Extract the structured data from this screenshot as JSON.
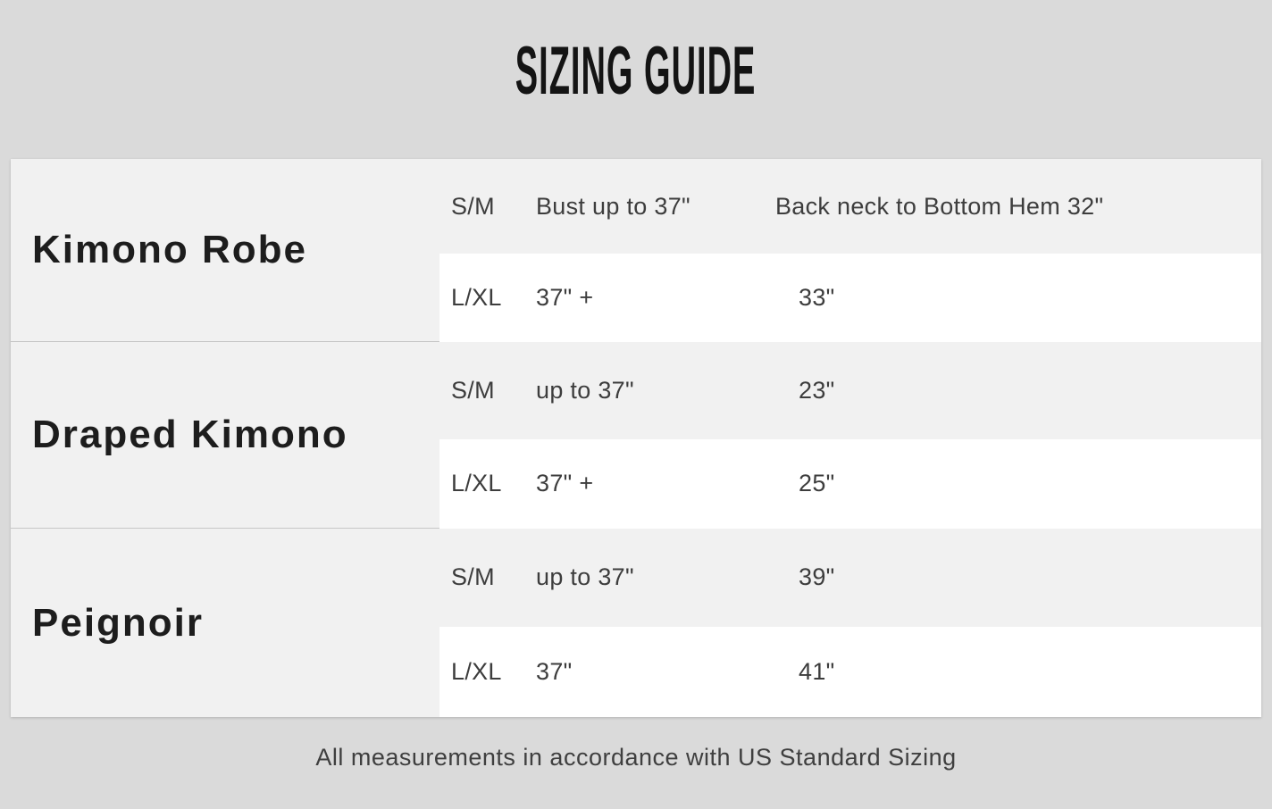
{
  "page": {
    "title": "SIZING GUIDE",
    "footnote": "All measurements in accordance with US Standard Sizing"
  },
  "colors": {
    "background": "#dadada",
    "panel": "#f1f1f1",
    "row_alt": "#ffffff",
    "divider": "#c7c7c7",
    "title_text": "#141414",
    "product_text": "#1d1d1d",
    "body_text": "#3d3d3d",
    "footnote_text": "#3f3f3f"
  },
  "table": {
    "products": [
      {
        "name": "Kimono Robe",
        "rows": [
          {
            "size": "S/M",
            "bust": "Bust up to 37\"",
            "length": "Back neck to Bottom Hem 32\""
          },
          {
            "size": "L/XL",
            "bust": "37\" +",
            "length": "33\""
          }
        ]
      },
      {
        "name": "Draped Kimono",
        "rows": [
          {
            "size": "S/M",
            "bust": "up to 37\"",
            "length": "23\""
          },
          {
            "size": "L/XL",
            "bust": "37\" +",
            "length": "25\""
          }
        ]
      },
      {
        "name": "Peignoir",
        "rows": [
          {
            "size": "S/M",
            "bust": "up to 37\"",
            "length": "39\""
          },
          {
            "size": "L/XL",
            "bust": "37\"",
            "length": "41\""
          }
        ]
      }
    ]
  },
  "chart_data": {
    "type": "table",
    "title": "SIZING GUIDE",
    "columns": [
      "product",
      "size",
      "bust",
      "back_neck_to_bottom_hem"
    ],
    "rows": [
      [
        "Kimono Robe",
        "S/M",
        "Bust up to 37\"",
        "Back neck to Bottom Hem 32\""
      ],
      [
        "Kimono Robe",
        "L/XL",
        "37\" +",
        "33\""
      ],
      [
        "Draped Kimono",
        "S/M",
        "up to 37\"",
        "23\""
      ],
      [
        "Draped Kimono",
        "L/XL",
        "37\" +",
        "25\""
      ],
      [
        "Peignoir",
        "S/M",
        "up to 37\"",
        "39\""
      ],
      [
        "Peignoir",
        "L/XL",
        "37\"",
        "41\""
      ]
    ],
    "footnote": "All measurements in accordance with US Standard Sizing",
    "layout": {
      "alternating_row_shading": true,
      "grid": "off"
    }
  }
}
